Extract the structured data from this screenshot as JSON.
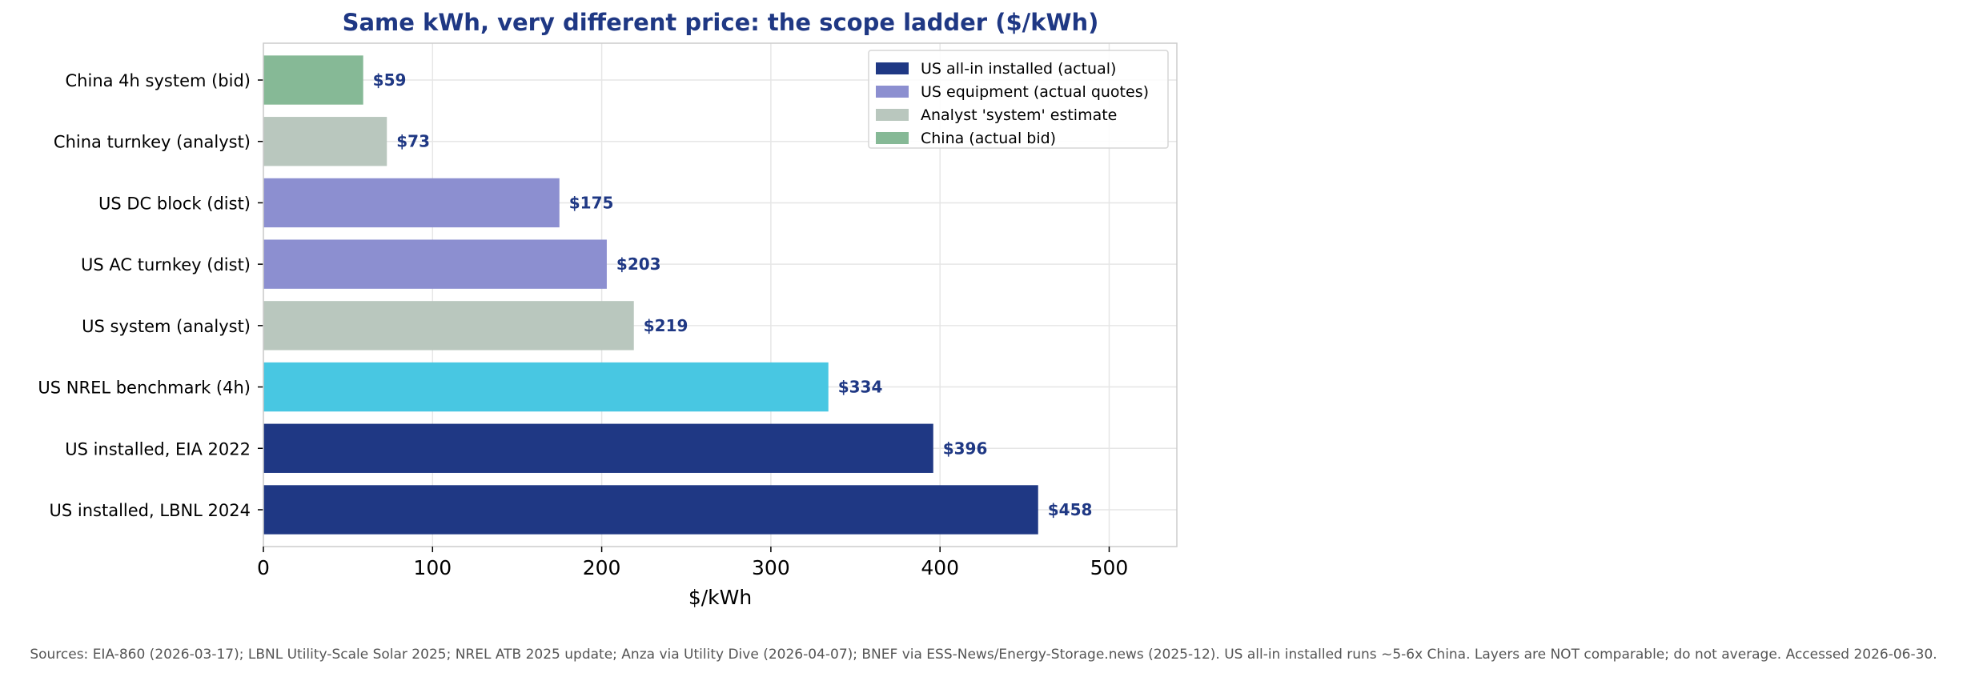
{
  "chart_data": {
    "type": "bar",
    "orientation": "horizontal",
    "title": "Same kWh, very different price: the scope ladder ($/kWh)",
    "xlabel": "$/kWh",
    "ylabel": "",
    "xlim": [
      0,
      540
    ],
    "xticks": [
      0,
      100,
      200,
      300,
      400,
      500
    ],
    "grid": true,
    "legend_position": "top-right",
    "categories": [
      "China 4h system (bid)",
      "China turnkey (analyst)",
      "US DC block (dist)",
      "US AC turnkey (dist)",
      "US system (analyst)",
      "US NREL benchmark (4h)",
      "US installed, EIA 2022",
      "US installed, LBNL 2024"
    ],
    "values": [
      59,
      73,
      175,
      203,
      219,
      334,
      396,
      458
    ],
    "value_labels": [
      "$59",
      "$73",
      "$175",
      "$203",
      "$219",
      "$334",
      "$396",
      "$458"
    ],
    "bar_colors": [
      "#86b996",
      "#b9c7be",
      "#8c8fd0",
      "#8c8fd0",
      "#b9c7be",
      "#48c7e2",
      "#1f3884",
      "#1f3884"
    ],
    "legend": [
      {
        "label": "US all-in installed (actual)",
        "color": "#1f3884"
      },
      {
        "label": "US equipment (actual quotes)",
        "color": "#8c8fd0"
      },
      {
        "label": "Analyst 'system' estimate",
        "color": "#b9c7be"
      },
      {
        "label": "China (actual bid)",
        "color": "#86b996"
      }
    ],
    "colors": {
      "title": "#1f3884",
      "value_label": "#1f3884",
      "grid": "#e6e6e6",
      "axis": "#cccccc"
    }
  },
  "footer": {
    "source_note": "Sources: EIA-860 (2026-03-17); LBNL Utility-Scale Solar 2025; NREL ATB 2025 update; Anza via Utility Dive (2026-04-07); BNEF via ESS-News/Energy-Storage.news (2025-12). US all-in installed runs ~5-6x China. Layers are NOT comparable; do not average. Accessed 2026-06-30."
  }
}
